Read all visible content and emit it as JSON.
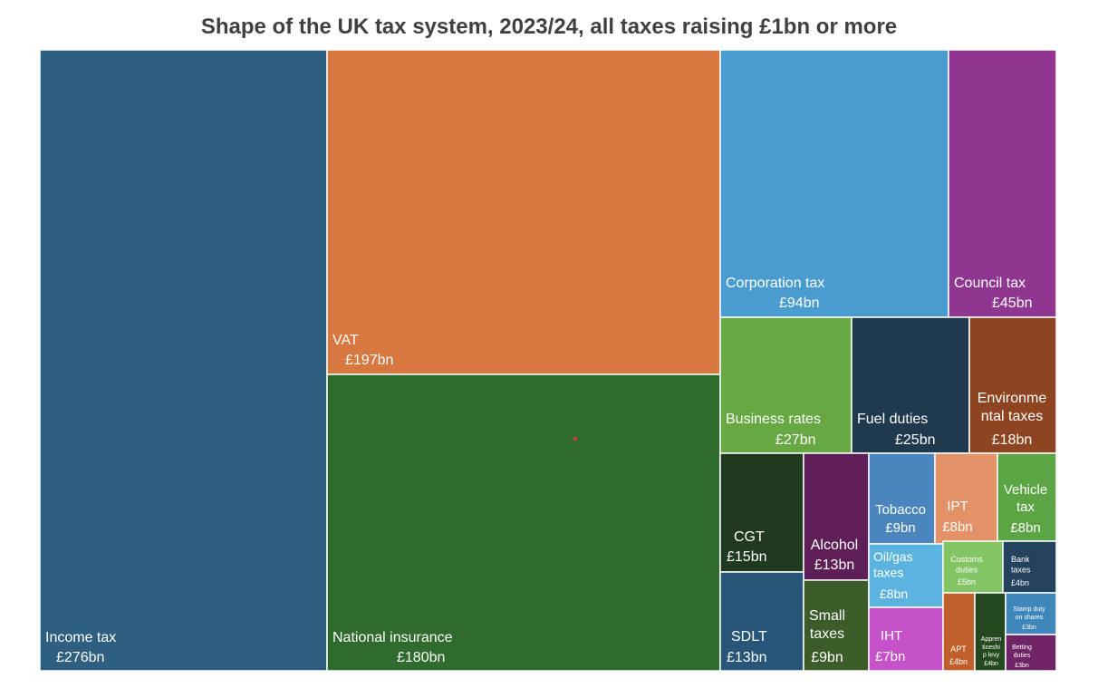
{
  "chart_data": {
    "type": "treemap",
    "title": "Shape of the UK tax system, 2023/24, all taxes raising £1bn or more",
    "unit": "£bn",
    "items": [
      {
        "name": "Income tax",
        "value_label": "£276bn",
        "value": 276,
        "color": "#2e5f80"
      },
      {
        "name": "VAT",
        "value_label": "£197bn",
        "value": 197,
        "color": "#d87841"
      },
      {
        "name": "National insurance",
        "value_label": "£180bn",
        "value": 180,
        "color": "#2f6b2c"
      },
      {
        "name": "Corporation tax",
        "value_label": "£94bn",
        "value": 94,
        "color": "#4a9bd0"
      },
      {
        "name": "Council tax",
        "value_label": "£45bn",
        "value": 45,
        "color": "#8f3691"
      },
      {
        "name": "Business rates",
        "value_label": "£27bn",
        "value": 27,
        "color": "#67a843"
      },
      {
        "name": "Fuel duties",
        "value_label": "£25bn",
        "value": 25,
        "color": "#1f3a4f"
      },
      {
        "name": "Environmental taxes",
        "value_label": "£18bn",
        "value": 18,
        "color": "#8e4420"
      },
      {
        "name": "CGT",
        "value_label": "£15bn",
        "value": 15,
        "color": "#1f3a1e"
      },
      {
        "name": "Alcohol",
        "value_label": "£13bn",
        "value": 13,
        "color": "#5e1e57"
      },
      {
        "name": "SDLT",
        "value_label": "£13bn",
        "value": 13,
        "color": "#275679"
      },
      {
        "name": "Small taxes",
        "value_label": "£9bn",
        "value": 9,
        "color": "#3c5c2a"
      },
      {
        "name": "Tobacco",
        "value_label": "£9bn",
        "value": 9,
        "color": "#4a86bd"
      },
      {
        "name": "IPT",
        "value_label": "£8bn",
        "value": 8,
        "color": "#e29266"
      },
      {
        "name": "Vehicle tax",
        "value_label": "£8bn",
        "value": 8,
        "color": "#5ca544"
      },
      {
        "name": "Oil/gas taxes",
        "value_label": "£8bn",
        "value": 8,
        "color": "#5bb3e0"
      },
      {
        "name": "IHT",
        "value_label": "£7bn",
        "value": 7,
        "color": "#c652c9"
      },
      {
        "name": "Customs duties",
        "value_label": "£5bn",
        "value": 5,
        "color": "#83c464"
      },
      {
        "name": "Bank taxes",
        "value_label": "£4bn",
        "value": 4,
        "color": "#23425d"
      },
      {
        "name": "APT",
        "value_label": "£4bn",
        "value": 4,
        "color": "#c15f2a"
      },
      {
        "name": "Apprenticeship levy",
        "value_label": "£4bn",
        "value": 4,
        "color": "#24481f"
      },
      {
        "name": "Stamp duty on shares",
        "value_label": "£3bn",
        "value": 3,
        "color": "#3f86ba"
      },
      {
        "name": "Betting duties",
        "value_label": "£3bn",
        "value": 3,
        "color": "#6e2466"
      }
    ]
  }
}
